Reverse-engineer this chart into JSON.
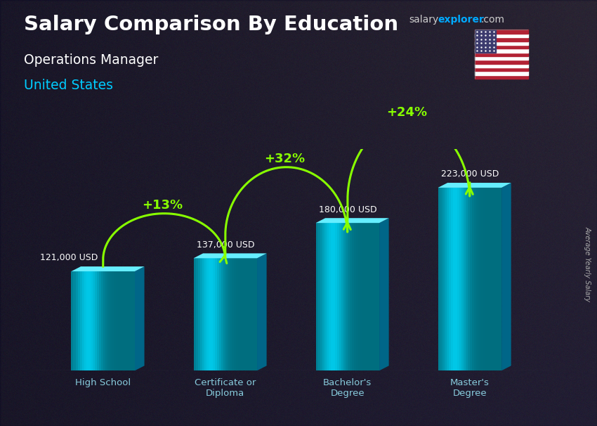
{
  "title_main": "Salary Comparison By Education",
  "title_sub": "Operations Manager",
  "title_country": "United States",
  "ylabel": "Average Yearly Salary",
  "website_salary": "salary",
  "website_explorer": "explorer",
  "website_com": ".com",
  "categories": [
    "High School",
    "Certificate or\nDiploma",
    "Bachelor's\nDegree",
    "Master's\nDegree"
  ],
  "values": [
    121000,
    137000,
    180000,
    223000
  ],
  "value_labels": [
    "121,000 USD",
    "137,000 USD",
    "180,000 USD",
    "223,000 USD"
  ],
  "pct_labels": [
    "+13%",
    "+32%",
    "+24%"
  ],
  "bar_face_color": "#00c8e8",
  "bar_top_color": "#55eeff",
  "bar_side_color": "#0088aa",
  "bar_shine_color": "#88eeff",
  "title_color": "#ffffff",
  "subtitle_color": "#ffffff",
  "country_color": "#00ccff",
  "value_label_color": "#ffffff",
  "pct_color": "#88ff00",
  "xtick_color": "#88ccdd",
  "website_salary_color": "#cccccc",
  "website_explorer_color": "#00aaff",
  "bg_color": "#2a2a3a",
  "ylim": [
    0,
    270000
  ],
  "bar_width": 0.52
}
